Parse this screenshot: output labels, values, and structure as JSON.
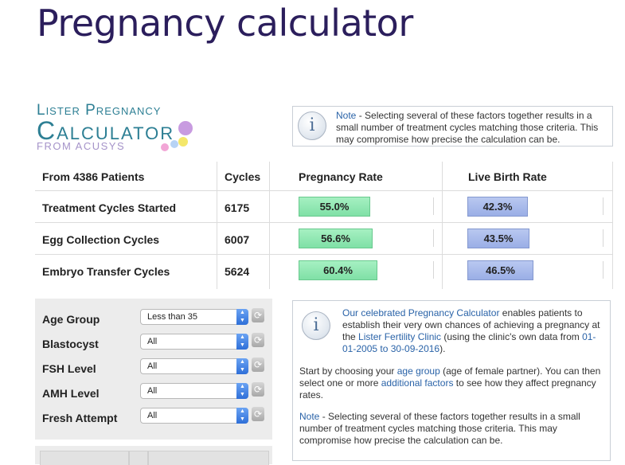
{
  "page": {
    "title": "Pregnancy calculator"
  },
  "logo": {
    "line1": "Lister Pregnancy",
    "line2": "Calculator",
    "line3": "FROM ACUSYS"
  },
  "note_top": {
    "label": "Note",
    "text": " - Selecting several of these factors together results in a small number of treatment cycles matching those criteria. This may compromise how precise the calculation can be."
  },
  "stats": {
    "headers": {
      "patients": "From 4386 Patients",
      "cycles": "Cycles",
      "pregnancy": "Pregnancy Rate",
      "livebirth": "Live Birth Rate"
    },
    "rows": [
      {
        "label": "Treatment Cycles Started",
        "cycles": "6175",
        "pregnancy": "55.0%",
        "livebirth": "42.3%",
        "pregnancy_value": 55.0,
        "livebirth_value": 42.3
      },
      {
        "label": "Egg Collection Cycles",
        "cycles": "6007",
        "pregnancy": "56.6%",
        "livebirth": "43.5%",
        "pregnancy_value": 56.6,
        "livebirth_value": 43.5
      },
      {
        "label": "Embryo Transfer Cycles",
        "cycles": "5624",
        "pregnancy": "60.4%",
        "livebirth": "46.5%",
        "pregnancy_value": 60.4,
        "livebirth_value": 46.5
      }
    ]
  },
  "filters": [
    {
      "label": "Age Group",
      "value": "Less than 35"
    },
    {
      "label": "Blastocyst",
      "value": "All"
    },
    {
      "label": "FSH Level",
      "value": "All"
    },
    {
      "label": "AMH Level",
      "value": "All"
    },
    {
      "label": "Fresh Attempt",
      "value": "All"
    }
  ],
  "info_main": {
    "p1_link": "Our celebrated Pregnancy Calculator",
    "p1_text": " enables patients to establish their very own chances of achieving a pregnancy at the ",
    "p1_link2": "Lister Fertility Clinic",
    "p1_text2": " (using the clinic's own data from ",
    "p1_link3": "01-01-2005 to 30-09-2016",
    "p1_text3": ").",
    "p2_a": "Start by choosing your ",
    "p2_link": "age group",
    "p2_b": " (age of female partner). You can then select one or more ",
    "p2_link2": "additional factors",
    "p2_c": " to see how they affect pregnancy rates.",
    "note_label": "Note",
    "note_text": " - Selecting several of these factors together results in a small number of treatment cycles matching those criteria. This may compromise how precise the calculation can be."
  },
  "colors": {
    "title": "#2b1e5c",
    "logo": "#2d7f94",
    "pregnancy_bar": "#8fe6b2",
    "livebirth_bar": "#a7b9ec",
    "link": "#2a63a8"
  }
}
